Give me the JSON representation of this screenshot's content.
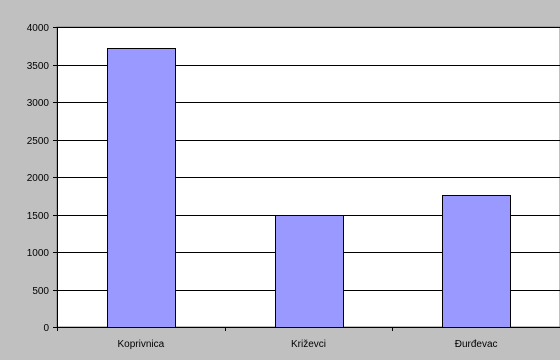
{
  "chart_data": {
    "type": "bar",
    "categories": [
      "Koprivnica",
      "Križevci",
      "Đurđevac"
    ],
    "values": [
      3720,
      1490,
      1760
    ],
    "title": "",
    "xlabel": "",
    "ylabel": "",
    "ylim": [
      0,
      4000
    ],
    "yticks": [
      0,
      500,
      1000,
      1500,
      2000,
      2500,
      3000,
      3500,
      4000
    ],
    "grid": true,
    "legend": "none"
  },
  "colors": {
    "bar_fill": "#9999ff",
    "bar_stroke": "#000000",
    "plot_background": "#ffffff",
    "chart_background": "#c0c0c0",
    "grid": "#000000"
  }
}
